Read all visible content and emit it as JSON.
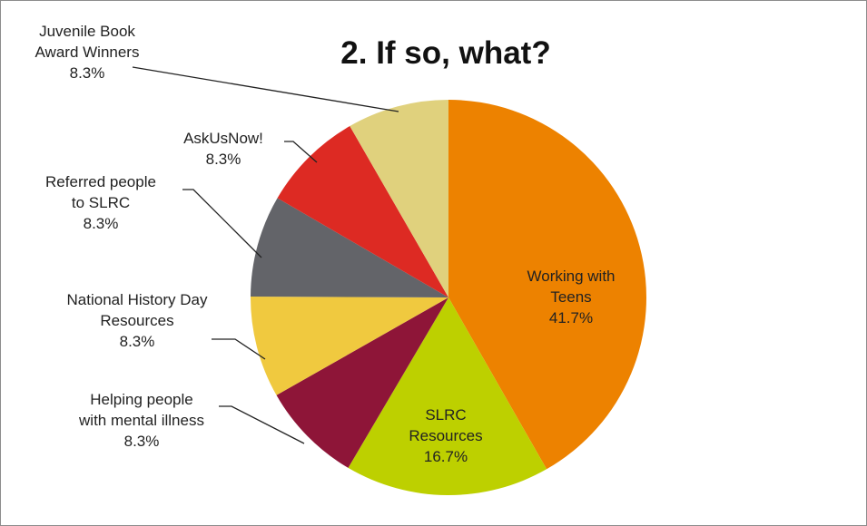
{
  "chart_data": {
    "type": "pie",
    "title": "2. If so, what?",
    "categories": [
      "Working with Teens",
      "SLRC Resources",
      "Helping people with mental illness",
      "National History Day Resources",
      "Referred people to SLRC",
      "AskUsNow!",
      "Juvenile Book Award Winners"
    ],
    "values": [
      41.7,
      16.7,
      8.3,
      8.3,
      8.3,
      8.3,
      8.3
    ],
    "value_labels": [
      "41.7%",
      "16.7%",
      "8.3%",
      "8.3%",
      "8.3%",
      "8.3%",
      "8.3%"
    ],
    "colors": [
      "#ed8200",
      "#bdd000",
      "#8e1538",
      "#f0c93f",
      "#636469",
      "#dd2a23",
      "#e0d17d"
    ]
  }
}
